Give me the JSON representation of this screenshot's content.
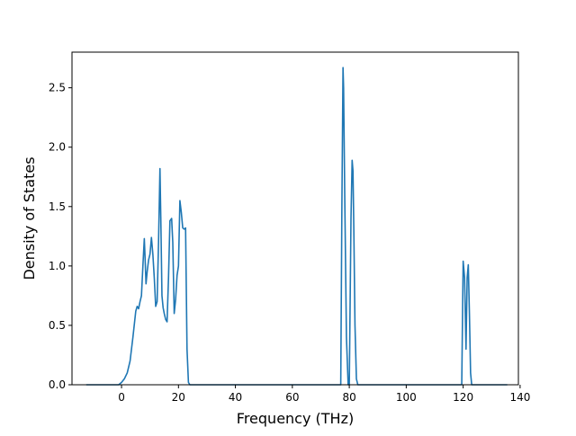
{
  "chart_data": {
    "type": "line",
    "xlabel": "Frequency (THz)",
    "ylabel": "Density of States",
    "xlim": [
      -17.4,
      139.4
    ],
    "ylim": [
      0,
      2.8
    ],
    "xticks": [
      0,
      20,
      40,
      60,
      80,
      100,
      120,
      140
    ],
    "yticks": [
      0.0,
      0.5,
      1.0,
      1.5,
      2.0,
      2.5
    ],
    "xtick_labels": [
      "0",
      "20",
      "40",
      "60",
      "80",
      "100",
      "120",
      "140"
    ],
    "ytick_labels": [
      "0.0",
      "0.5",
      "1.0",
      "1.5",
      "2.0",
      "2.5"
    ],
    "grid": false,
    "line_color": "#1f77b4",
    "series": [
      {
        "x": [
          -12.4,
          -1,
          0,
          1,
          2,
          3,
          4,
          5,
          5.5,
          6,
          6.5,
          7,
          7.5,
          8,
          8.3,
          8.6,
          9,
          9.5,
          10,
          10.5,
          11,
          11.5,
          12,
          12.5,
          13,
          13.5,
          13.8,
          14.2,
          14.6,
          15,
          15.5,
          16,
          16.5,
          17,
          17.3,
          17.6,
          18,
          18.5,
          19,
          19.5,
          20,
          20.5,
          21,
          21.5,
          22,
          22.5,
          23,
          23.5,
          24,
          24.5,
          25,
          30,
          50,
          70,
          77,
          77.4,
          77.8,
          78,
          78.4,
          79,
          79.6,
          80,
          80.3,
          80.6,
          81,
          81.3,
          81.6,
          82,
          82.5,
          83,
          83.5,
          84,
          90,
          110,
          118,
          119.5,
          120,
          120.5,
          121,
          121.4,
          121.8,
          122.2,
          122.6,
          123,
          123.5,
          125,
          135.5
        ],
        "y": [
          0,
          0,
          0.02,
          0.05,
          0.1,
          0.2,
          0.4,
          0.62,
          0.66,
          0.64,
          0.7,
          0.75,
          1.0,
          1.23,
          1.05,
          0.85,
          0.95,
          1.05,
          1.1,
          1.24,
          1.1,
          0.9,
          0.66,
          0.7,
          1.2,
          1.82,
          1.4,
          0.75,
          0.65,
          0.6,
          0.55,
          0.53,
          0.9,
          1.38,
          1.39,
          1.4,
          1.2,
          0.6,
          0.72,
          0.92,
          1.0,
          1.55,
          1.45,
          1.32,
          1.31,
          1.32,
          0.3,
          0.02,
          0,
          0,
          0,
          0,
          0,
          0,
          0,
          1.5,
          2.67,
          2.5,
          1.6,
          0.4,
          0,
          0,
          0.7,
          1.4,
          1.89,
          1.8,
          1.3,
          0.5,
          0.05,
          0,
          0,
          0,
          0,
          0,
          0,
          0,
          1.04,
          0.9,
          0.3,
          0.9,
          1.01,
          0.6,
          0.1,
          0,
          0,
          0,
          0
        ]
      }
    ]
  }
}
